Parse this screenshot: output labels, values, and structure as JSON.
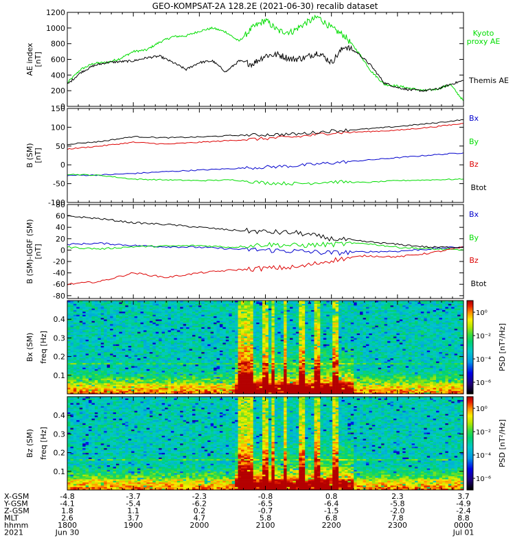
{
  "figure": {
    "title": "GEO-KOMPSAT-2A 128.2E (2021-06-30) recalib dataset"
  },
  "colors": {
    "black": "#000000",
    "green": "#00dd00",
    "red": "#dd0000",
    "blue": "#0000cc",
    "background": "#ffffff"
  },
  "chart_data": [
    {
      "type": "line",
      "panel": "ae-index",
      "ylabel": "AE index",
      "yunit": "[nT]",
      "ylim": [
        0,
        1200
      ],
      "yticks": [
        0,
        200,
        400,
        600,
        800,
        1000,
        1200
      ],
      "x_range_hours": [
        18,
        24
      ],
      "series": [
        {
          "name": "Kyoto proxy AE",
          "color": "#00dd00",
          "x": [
            18.0,
            18.2,
            18.4,
            18.6,
            18.8,
            19.0,
            19.2,
            19.4,
            19.6,
            19.8,
            20.0,
            20.2,
            20.4,
            20.6,
            20.8,
            21.0,
            21.2,
            21.4,
            21.6,
            21.8,
            22.0,
            22.2,
            22.4,
            22.6,
            22.8,
            23.0,
            23.2,
            23.4,
            23.6,
            23.8,
            24.0
          ],
          "y": [
            300,
            470,
            550,
            560,
            610,
            700,
            720,
            820,
            890,
            900,
            960,
            1000,
            950,
            830,
            1000,
            1100,
            960,
            950,
            1060,
            1140,
            1000,
            900,
            700,
            450,
            280,
            260,
            230,
            200,
            220,
            280,
            70
          ]
        },
        {
          "name": "Themis AE",
          "color": "#000000",
          "x": [
            18.0,
            18.2,
            18.4,
            18.6,
            18.8,
            19.0,
            19.2,
            19.4,
            19.6,
            19.8,
            20.0,
            20.2,
            20.4,
            20.6,
            20.8,
            21.0,
            21.2,
            21.4,
            21.6,
            21.8,
            22.0,
            22.2,
            22.4,
            22.6,
            22.8,
            23.0,
            23.2,
            23.4,
            23.6,
            23.8,
            24.0
          ],
          "y": [
            280,
            430,
            520,
            560,
            570,
            580,
            620,
            640,
            560,
            470,
            560,
            580,
            440,
            580,
            540,
            650,
            660,
            600,
            620,
            690,
            560,
            770,
            680,
            520,
            300,
            240,
            210,
            200,
            220,
            280,
            330
          ]
        }
      ]
    },
    {
      "type": "line",
      "panel": "b-sm",
      "ylabel": "B (SM)",
      "yunit": "[nT]",
      "ylim": [
        -100,
        150
      ],
      "yticks": [
        -100,
        -50,
        0,
        50,
        100,
        150
      ],
      "x_range_hours": [
        18,
        24
      ],
      "series": [
        {
          "name": "Bx",
          "color": "#0000cc",
          "x": [
            18.0,
            18.5,
            19.0,
            19.5,
            20.0,
            20.5,
            21.0,
            21.5,
            22.0,
            22.5,
            23.0,
            23.5,
            24.0
          ],
          "y": [
            -28,
            -27,
            -23,
            -18,
            -14,
            -10,
            -6,
            -2,
            5,
            12,
            19,
            26,
            32
          ]
        },
        {
          "name": "By",
          "color": "#00dd00",
          "x": [
            18.0,
            18.5,
            19.0,
            19.5,
            20.0,
            20.5,
            21.0,
            21.5,
            22.0,
            22.5,
            23.0,
            23.5,
            24.0
          ],
          "y": [
            -25,
            -28,
            -38,
            -40,
            -42,
            -40,
            -48,
            -50,
            -45,
            -47,
            -42,
            -40,
            -38
          ]
        },
        {
          "name": "Bz",
          "color": "#dd0000",
          "x": [
            18.0,
            18.5,
            19.0,
            19.5,
            20.0,
            20.5,
            21.0,
            21.5,
            22.0,
            22.5,
            23.0,
            23.5,
            24.0
          ],
          "y": [
            42,
            50,
            60,
            55,
            60,
            65,
            70,
            75,
            85,
            88,
            92,
            100,
            110
          ]
        },
        {
          "name": "Btot",
          "color": "#000000",
          "x": [
            18.0,
            18.5,
            19.0,
            19.5,
            20.0,
            20.5,
            21.0,
            21.5,
            22.0,
            22.5,
            23.0,
            23.5,
            24.0
          ],
          "y": [
            55,
            62,
            75,
            72,
            74,
            78,
            80,
            82,
            90,
            95,
            102,
            110,
            120
          ]
        }
      ]
    },
    {
      "type": "line",
      "panel": "b-minus-igrf",
      "ylabel": "B (SM)-IGRF (SM)",
      "yunit": "[nT]",
      "ylim": [
        -85,
        80
      ],
      "yticks": [
        -80,
        -60,
        -40,
        -20,
        0,
        20,
        40,
        60,
        80
      ],
      "x_range_hours": [
        18,
        24
      ],
      "series": [
        {
          "name": "Bx",
          "color": "#0000cc",
          "x": [
            18.0,
            18.5,
            19.0,
            19.5,
            20.0,
            20.5,
            21.0,
            21.5,
            22.0,
            22.5,
            23.0,
            23.5,
            24.0
          ],
          "y": [
            10,
            12,
            8,
            6,
            5,
            2,
            0,
            -2,
            -5,
            -3,
            -2,
            2,
            6
          ]
        },
        {
          "name": "By",
          "color": "#00dd00",
          "x": [
            18.0,
            18.5,
            19.0,
            19.5,
            20.0,
            20.5,
            21.0,
            21.5,
            22.0,
            22.5,
            23.0,
            23.5,
            24.0
          ],
          "y": [
            5,
            2,
            6,
            7,
            8,
            5,
            10,
            8,
            10,
            12,
            5,
            2,
            0
          ]
        },
        {
          "name": "Bz",
          "color": "#dd0000",
          "x": [
            18.0,
            18.5,
            19.0,
            19.5,
            20.0,
            20.5,
            21.0,
            21.5,
            22.0,
            22.5,
            23.0,
            23.5,
            24.0
          ],
          "y": [
            -60,
            -55,
            -40,
            -48,
            -40,
            -35,
            -32,
            -30,
            -18,
            -10,
            -12,
            -5,
            5
          ]
        },
        {
          "name": "Btot",
          "color": "#000000",
          "x": [
            18.0,
            18.5,
            19.0,
            19.5,
            20.0,
            20.5,
            21.0,
            21.5,
            22.0,
            22.5,
            23.0,
            23.5,
            24.0
          ],
          "y": [
            60,
            55,
            48,
            45,
            40,
            35,
            32,
            30,
            20,
            15,
            10,
            5,
            5
          ]
        }
      ]
    },
    {
      "type": "heatmap",
      "panel": "bx-spectrogram",
      "ylabel": "Bx (SM)",
      "ylabel2": "freq [Hz]",
      "yticks": [
        0.1,
        0.2,
        0.3,
        0.4
      ],
      "ylim": [
        0,
        0.5
      ],
      "colorbar_label": "PSD [nT²/Hz]",
      "colorbar_ticks": [
        "10⁰",
        "10⁻²",
        "10⁻⁴",
        "10⁻⁶"
      ],
      "colorbar_exponents": [
        0,
        -2,
        -4,
        -6
      ],
      "colorbar_range_exp": [
        -7,
        1
      ]
    },
    {
      "type": "heatmap",
      "panel": "bz-spectrogram",
      "ylabel": "Bz (SM)",
      "ylabel2": "freq [Hz]",
      "yticks": [
        0.1,
        0.2,
        0.3,
        0.4
      ],
      "ylim": [
        0,
        0.5
      ],
      "colorbar_label": "PSD [nT²/Hz]",
      "colorbar_ticks": [
        "10⁰",
        "10⁻²",
        "10⁻⁴",
        "10⁻⁶"
      ],
      "colorbar_exponents": [
        0,
        -2,
        -4,
        -6
      ],
      "colorbar_range_exp": [
        -7,
        1
      ]
    }
  ],
  "legends": {
    "ae": [
      "Kyoto proxy AE",
      "Themis AE"
    ],
    "b": [
      "Bx",
      "By",
      "Bz",
      "Btot"
    ],
    "db": [
      "Bx",
      "By",
      "Bz",
      "Btot"
    ]
  },
  "x_axis": {
    "row_labels": [
      "X-GSM",
      "Y-GSM",
      "Z-GSM",
      "MLT",
      "hhmm",
      "2021"
    ],
    "columns": [
      {
        "values": [
          "-4.8",
          "-4.1",
          "1.8",
          "2.6",
          "1800",
          "Jun 30"
        ]
      },
      {
        "values": [
          "-3.7",
          "-5.4",
          "1.1",
          "3.7",
          "1900",
          ""
        ]
      },
      {
        "values": [
          "-2.3",
          "-6.2",
          "0.2",
          "4.7",
          "2000",
          ""
        ]
      },
      {
        "values": [
          "-0.8",
          "-6.5",
          "-0.7",
          "5.8",
          "2100",
          ""
        ]
      },
      {
        "values": [
          "0.8",
          "-6.4",
          "-1.5",
          "6.8",
          "2200",
          ""
        ]
      },
      {
        "values": [
          "2.3",
          "-5.8",
          "-2.0",
          "7.8",
          "2300",
          ""
        ]
      },
      {
        "values": [
          "3.7",
          "-4.9",
          "-2.4",
          "8.8",
          "0000",
          "Jul 01"
        ]
      }
    ]
  }
}
